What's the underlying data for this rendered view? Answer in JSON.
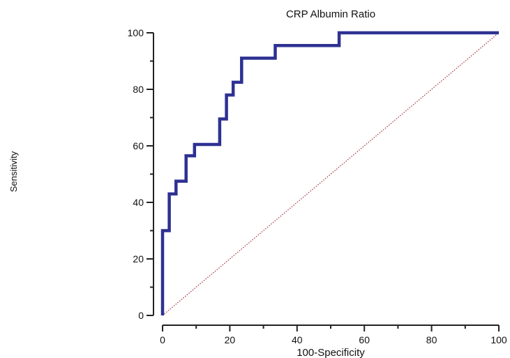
{
  "chart_data": {
    "type": "line",
    "title": "CRP Albumin  Ratio",
    "xlabel": "100-Specificity",
    "ylabel": "Sensitivity",
    "xlim": [
      0,
      100
    ],
    "ylim": [
      0,
      100
    ],
    "xticks": [
      "0",
      "20",
      "40",
      "60",
      "80",
      "100"
    ],
    "yticks": [
      "0",
      "20",
      "40",
      "60",
      "80",
      "100"
    ],
    "grid": false,
    "series": [
      {
        "style": "step",
        "color": "#2e3192",
        "x": [
          0,
          0,
          2,
          2,
          4,
          4,
          7,
          7,
          9.5,
          9.5,
          17,
          17,
          19,
          19,
          21,
          21,
          23.5,
          23.5,
          33.5,
          33.5,
          52.5,
          52.5,
          100
        ],
        "y": [
          0,
          30,
          30,
          43,
          43,
          47.5,
          47.5,
          56.5,
          56.5,
          60.5,
          60.5,
          69.5,
          69.5,
          78,
          78,
          82.5,
          82.5,
          91,
          91,
          95.5,
          95.5,
          100,
          100
        ]
      },
      {
        "style": "dotted",
        "color": "#a0303a",
        "x": [
          0,
          100
        ],
        "y": [
          0,
          100
        ]
      }
    ]
  }
}
